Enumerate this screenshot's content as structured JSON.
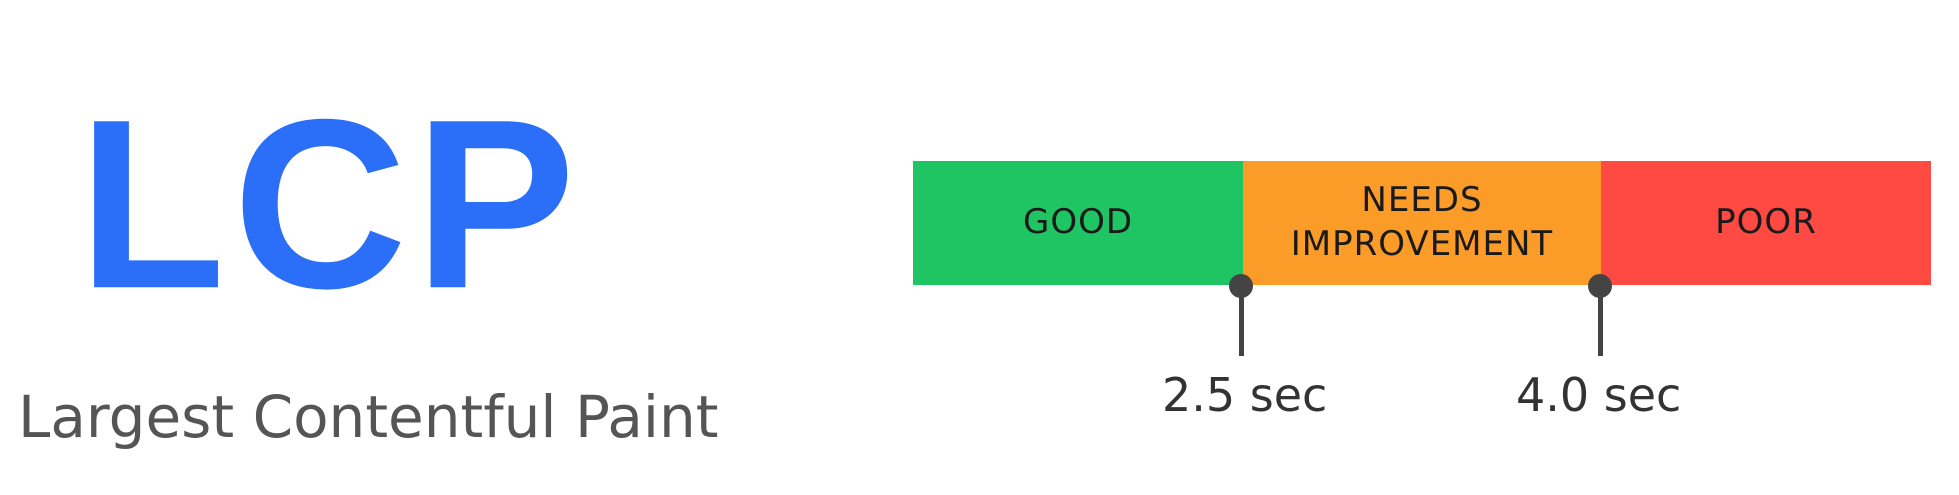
{
  "metric": {
    "acronym": "LCP",
    "full_name": "Largest Contentful Paint",
    "acronym_color": "#2b6ef7"
  },
  "scale": {
    "segments": [
      {
        "label": "GOOD",
        "color": "#1fc463"
      },
      {
        "label": "NEEDS IMPROVEMENT",
        "color": "#fb9b28"
      },
      {
        "label": "POOR",
        "color": "#fe4a42"
      }
    ],
    "thresholds": [
      {
        "label": "2.5 sec",
        "value": 2.5
      },
      {
        "label": "4.0 sec",
        "value": 4.0
      }
    ],
    "marker_color": "#444444"
  }
}
